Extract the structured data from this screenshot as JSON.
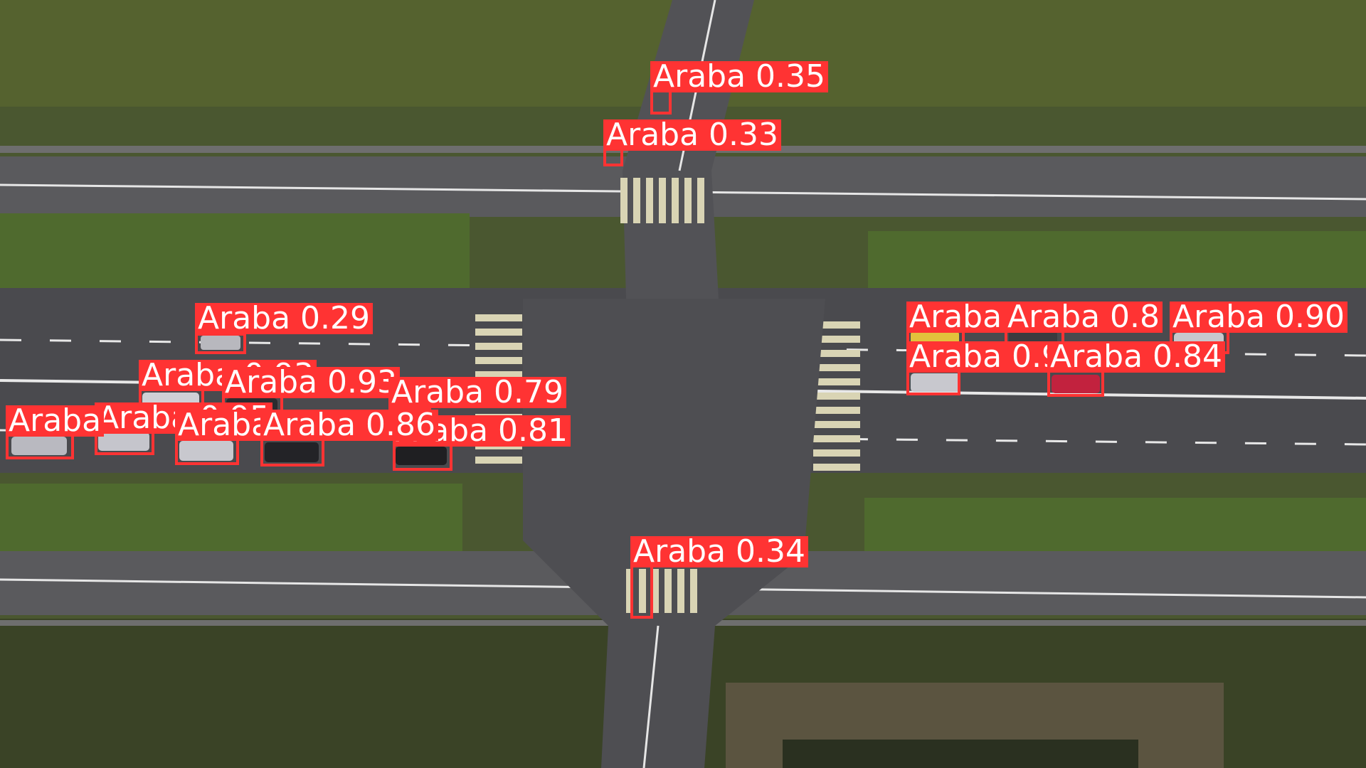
{
  "scene": {
    "description_colors": {
      "grass": "#48552f",
      "asphalt": "#4b4b4f",
      "marking": "#e9e9e9",
      "crosswalk": "#d8d2b6"
    }
  },
  "detection_style": {
    "box_color": "#ff3333",
    "label_text_color": "#ffffff"
  },
  "detections": [
    {
      "label": "Araba 0.35"
    },
    {
      "label": "Araba 0.33"
    },
    {
      "label": "Araba 0.29"
    },
    {
      "label": "Araba 0.93"
    },
    {
      "label": "Araba 0.93"
    },
    {
      "label": "Araba 0.79"
    },
    {
      "label": "Araba 0.81"
    },
    {
      "label": "Araba 0.95"
    },
    {
      "label": "Araba 0.92"
    },
    {
      "label": "Araba 0.86"
    },
    {
      "label": "Araba"
    },
    {
      "label": "Araba 0.34"
    },
    {
      "label": "Araba 0.92"
    },
    {
      "label": "Araba 0.8"
    },
    {
      "label": "Araba 0.90"
    },
    {
      "label": "Araba 0.92"
    },
    {
      "label": "Araba 0.84"
    }
  ]
}
